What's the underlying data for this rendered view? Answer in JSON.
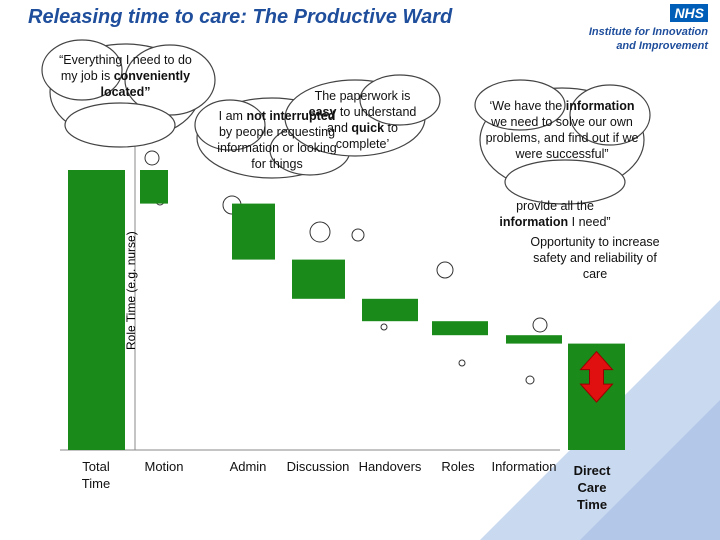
{
  "header": {
    "title": "Releasing time to care: The Productive Ward",
    "logo": "NHS",
    "organisation": "Institute for Innovation and Improvement"
  },
  "chart_data": {
    "type": "waterfall",
    "ylabel": "Role Time (e.g. nurse)",
    "categories": [
      "Total Time",
      "Motion",
      "Admin",
      "Discussion",
      "Handovers",
      "Roles",
      "Information",
      "Direct Care Time"
    ],
    "values": [
      100,
      12,
      20,
      14,
      8,
      5,
      3,
      38
    ],
    "color": "#1a8a1a",
    "ylim": [
      0,
      100
    ]
  },
  "bubbles": [
    {
      "parts": [
        {
          "text": "“Everything I need to do my job is "
        },
        {
          "text": "conveniently located”",
          "bold": true
        }
      ]
    },
    {
      "parts": [
        {
          "text": "I am "
        },
        {
          "text": "not interrupted",
          "bold": true
        },
        {
          "text": " by people requesting information or looking for things"
        }
      ]
    },
    {
      "parts": [
        {
          "text": "The paperwork is "
        },
        {
          "text": "easy",
          "bold": true
        },
        {
          "text": " to understand and "
        },
        {
          "text": "quick",
          "bold": true
        },
        {
          "text": " to complete’"
        }
      ]
    },
    {
      "parts": [
        {
          "text": "‘We have the "
        },
        {
          "text": "information",
          "bold": true
        },
        {
          "text": " we need to solve our own problems, and find out if we were successful”"
        }
      ]
    },
    {
      "parts": [
        {
          "text": "provide all the "
        },
        {
          "text": "information",
          "bold": true
        },
        {
          "text": " I need”"
        }
      ]
    },
    {
      "parts": [
        {
          "text": "Opportunity to increase safety and reliability of care"
        }
      ]
    }
  ]
}
